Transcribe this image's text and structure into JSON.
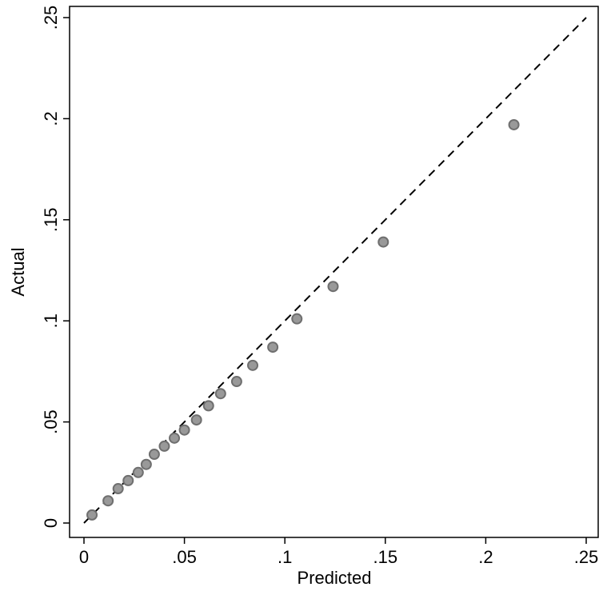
{
  "chart_data": {
    "type": "scatter",
    "x_label": "Predicted",
    "y_label": "Actual",
    "color": "#999999",
    "x": [
      0.004,
      0.012,
      0.017,
      0.022,
      0.027,
      0.031,
      0.035,
      0.04,
      0.045,
      0.05,
      0.056,
      0.062,
      0.068,
      0.076,
      0.084,
      0.094,
      0.106,
      0.124,
      0.149,
      0.214
    ],
    "values": [
      0.004,
      0.011,
      0.017,
      0.021,
      0.025,
      0.029,
      0.034,
      0.038,
      0.042,
      0.046,
      0.051,
      0.058,
      0.064,
      0.07,
      0.078,
      0.087,
      0.101,
      0.117,
      0.139,
      0.197
    ],
    "xlim": [
      0,
      0.25
    ],
    "ylim": [
      0,
      0.25
    ],
    "xticks": [
      0,
      {
        "value": 0.05,
        "label": ".05"
      },
      {
        "value": 0.1,
        "label": ".1"
      },
      {
        "value": 0.15,
        "label": ".15"
      },
      {
        "value": 0.2,
        "label": ".2"
      },
      {
        "value": 0.25,
        "label": ".25"
      }
    ],
    "yticks": [
      0,
      {
        "value": 0.05,
        "label": ".05"
      },
      {
        "value": 0.1,
        "label": ".1"
      },
      {
        "value": 0.15,
        "label": ".15"
      },
      {
        "value": 0.2,
        "label": ".2"
      },
      {
        "value": 0.25,
        "label": ".25"
      }
    ]
  }
}
